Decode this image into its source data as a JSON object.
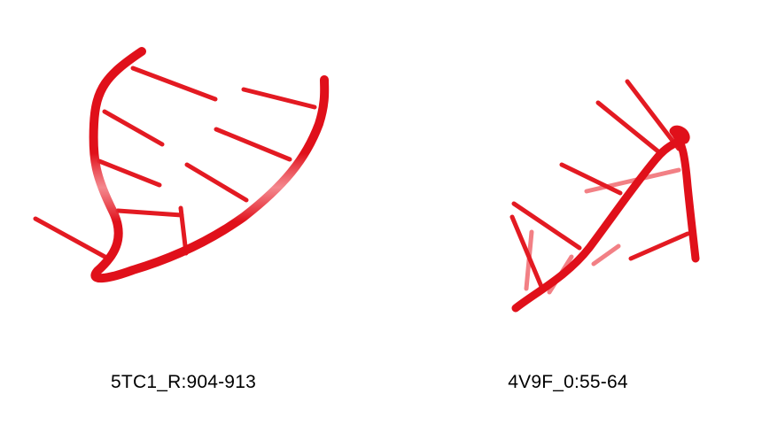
{
  "structures": [
    {
      "caption": "5TC1_R:904-913",
      "icon": "rna-hairpin-cartoon",
      "color": "#e0101a"
    },
    {
      "caption": "4V9F_0:55-64",
      "icon": "rna-hairpin-cartoon",
      "color": "#e0101a"
    }
  ]
}
